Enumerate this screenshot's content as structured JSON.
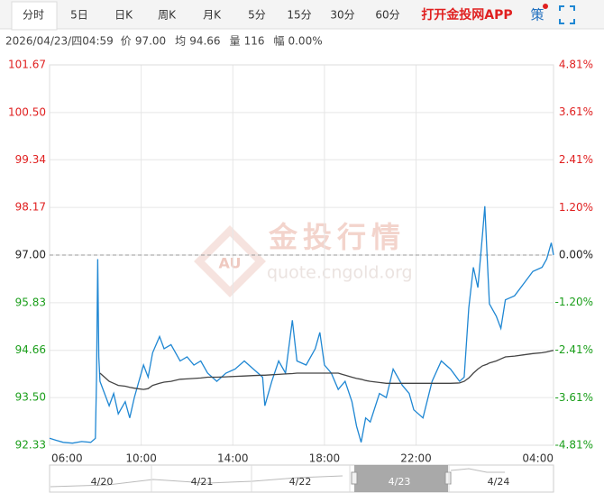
{
  "tabs": [
    "分时",
    "5日",
    "日K",
    "周K",
    "月K",
    "5分",
    "15分",
    "30分",
    "60分"
  ],
  "app_link": "打开金投网APP",
  "strategy": "策",
  "info": {
    "time": "2026/04/23/四04:59",
    "items": [
      {
        "label": "价",
        "value": "97.00"
      },
      {
        "label": "均",
        "value": "94.66"
      },
      {
        "label": "量",
        "value": "116"
      },
      {
        "label": "幅",
        "value": "0.00%"
      }
    ]
  },
  "watermark": {
    "logo": "AU",
    "title": "金投行情",
    "url": "quote.cngold.org"
  },
  "chart_data": {
    "type": "line",
    "x": [
      6.0,
      6.3,
      6.6,
      7.0,
      7.4,
      7.8,
      8.0,
      8.05,
      8.1,
      8.15,
      8.2,
      8.4,
      8.6,
      8.8,
      9.0,
      9.3,
      9.5,
      9.7,
      10.1,
      10.3,
      10.5,
      10.8,
      11.0,
      11.3,
      11.7,
      12.0,
      12.3,
      12.6,
      12.9,
      13.3,
      13.7,
      14.1,
      14.5,
      14.9,
      15.3,
      15.4,
      15.7,
      16.0,
      16.3,
      16.6,
      16.8,
      17.2,
      17.6,
      17.8,
      18.0,
      18.3,
      18.6,
      18.9,
      19.2,
      19.4,
      19.6,
      19.8,
      20.0,
      20.4,
      20.7,
      21.0,
      21.4,
      21.7,
      21.9,
      22.3,
      22.7,
      23.1,
      23.5,
      23.9,
      24.1,
      24.3,
      24.5,
      24.7,
      24.9,
      25.0,
      25.1,
      25.2,
      25.5,
      25.7,
      25.9,
      26.3,
      26.7,
      27.1,
      27.5,
      27.7,
      27.9,
      28.0
    ],
    "series": [
      {
        "name": "价",
        "color": "#1f87d3",
        "values": [
          92.5,
          92.45,
          92.4,
          92.38,
          92.42,
          92.4,
          92.5,
          94.0,
          96.9,
          94.5,
          93.9,
          93.6,
          93.3,
          93.6,
          93.1,
          93.4,
          93.0,
          93.5,
          94.3,
          94.0,
          94.6,
          95.0,
          94.7,
          94.8,
          94.4,
          94.5,
          94.3,
          94.4,
          94.1,
          93.9,
          94.1,
          94.2,
          94.4,
          94.2,
          94.0,
          93.3,
          93.9,
          94.4,
          94.1,
          95.4,
          94.4,
          94.3,
          94.7,
          95.1,
          94.3,
          94.1,
          93.7,
          93.9,
          93.4,
          92.8,
          92.4,
          93.0,
          92.9,
          93.6,
          93.5,
          94.2,
          93.8,
          93.6,
          93.2,
          93.0,
          93.9,
          94.4,
          94.2,
          93.9,
          94.0,
          95.7,
          96.7,
          96.2,
          97.5,
          98.2,
          97.0,
          95.8,
          95.5,
          95.2,
          95.9,
          96.0,
          96.3,
          96.6,
          96.7,
          96.9,
          97.3,
          97.0
        ]
      },
      {
        "name": "均",
        "color": "#444444",
        "values": [
          null,
          null,
          null,
          null,
          null,
          null,
          null,
          null,
          null,
          null,
          94.1,
          94.0,
          93.9,
          93.85,
          93.8,
          93.78,
          93.75,
          93.73,
          93.7,
          93.72,
          93.8,
          93.85,
          93.88,
          93.9,
          93.95,
          93.96,
          93.97,
          93.98,
          94.0,
          94.0,
          94.01,
          94.02,
          94.03,
          94.04,
          94.05,
          94.05,
          94.06,
          94.07,
          94.08,
          94.09,
          94.1,
          94.1,
          94.1,
          94.1,
          94.1,
          94.1,
          94.1,
          94.05,
          94.0,
          93.97,
          93.95,
          93.92,
          93.9,
          93.87,
          93.85,
          93.85,
          93.85,
          93.85,
          93.85,
          93.85,
          93.85,
          93.85,
          93.85,
          93.86,
          93.9,
          93.98,
          94.1,
          94.2,
          94.28,
          94.3,
          94.32,
          94.35,
          94.4,
          94.45,
          94.5,
          94.52,
          94.55,
          94.58,
          94.6,
          94.62,
          94.65,
          94.66
        ]
      }
    ],
    "baseline": 97,
    "xlim": [
      6,
      28
    ],
    "xticks": [
      {
        "value": 6,
        "label": "06:00"
      },
      {
        "value": 10,
        "label": "10:00"
      },
      {
        "value": 14,
        "label": "14:00"
      },
      {
        "value": 18,
        "label": "18:00"
      },
      {
        "value": 22,
        "label": "22:00"
      },
      {
        "value": 28,
        "label": "04:00"
      }
    ],
    "ylim": [
      92.33,
      101.67
    ],
    "yticks": [
      92.33,
      {
        "value": 93.5,
        "label": "93.50"
      },
      94.66,
      95.83,
      {
        "value": 97,
        "label": "97.00"
      },
      98.17,
      99.34,
      {
        "value": 100.5,
        "label": "100.50"
      },
      101.67
    ],
    "y2lim": [
      -4.81,
      4.81
    ],
    "y2ticks": [
      {
        "value": -4.81,
        "label": "-4.81%"
      },
      {
        "value": -3.61,
        "label": "-3.61%"
      },
      {
        "value": -2.41,
        "label": "-2.41%"
      },
      {
        "value": -1.2,
        "label": "-1.20%"
      },
      {
        "value": 0,
        "label": "0.00%"
      },
      {
        "value": 1.2,
        "label": "1.20%"
      },
      {
        "value": 2.41,
        "label": "2.41%"
      },
      {
        "value": 3.61,
        "label": "3.61%"
      },
      {
        "value": 4.81,
        "label": "4.81%"
      }
    ],
    "grid": true,
    "up_color": "#e02020",
    "down_color": "#1a9e1a",
    "flat_color": "#222222"
  },
  "navigator": {
    "dates": [
      "4/20",
      "4/21",
      "4/22",
      "4/23",
      "4/24"
    ],
    "selected": 3
  }
}
